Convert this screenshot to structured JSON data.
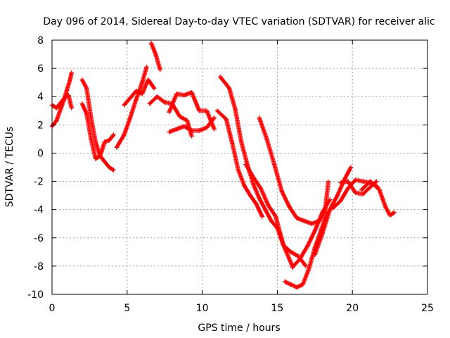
{
  "chart_data": {
    "type": "scatter",
    "title": "Day 096 of 2014, Sidereal Day-to-day VTEC variation (SDTVAR) for receiver alic",
    "xlabel": "GPS time / hours",
    "ylabel": "SDTVAR / TECUs",
    "xlim": [
      0,
      25
    ],
    "ylim": [
      -10,
      8
    ],
    "xticks": [
      0,
      5,
      10,
      15,
      20,
      25
    ],
    "yticks": [
      -10,
      -8,
      -6,
      -4,
      -2,
      0,
      2,
      4,
      6,
      8
    ],
    "xtick_labels": [
      "0",
      "5",
      "10",
      "15",
      "20",
      "25"
    ],
    "ytick_labels": [
      "-10",
      "-8",
      "-6",
      "-4",
      "-2",
      "0",
      "2",
      "4",
      "6",
      "8"
    ],
    "grid": true,
    "marker": "plus",
    "color": "#ff0000",
    "series": [
      {
        "x": [
          0.0,
          0.3,
          0.6,
          0.8,
          1.0,
          1.2,
          1.3
        ],
        "y": [
          1.9,
          2.3,
          3.2,
          3.8,
          4.5,
          5.2,
          5.7
        ]
      },
      {
        "x": [
          0.0,
          0.3,
          0.6,
          0.9,
          1.1,
          1.3
        ],
        "y": [
          3.4,
          3.2,
          3.6,
          4.0,
          4.1,
          3.2
        ]
      },
      {
        "x": [
          2.0,
          2.3,
          2.6,
          2.9,
          3.2,
          3.5,
          3.8,
          4.1
        ],
        "y": [
          5.2,
          4.6,
          2.5,
          0.8,
          -0.2,
          0.8,
          0.9,
          1.3
        ]
      },
      {
        "x": [
          2.0,
          2.3,
          2.6,
          2.9,
          3.2,
          3.5,
          3.8,
          4.1
        ],
        "y": [
          3.5,
          2.8,
          1.0,
          -0.4,
          -0.2,
          -0.6,
          -1.0,
          -1.2
        ]
      },
      {
        "x": [
          4.3,
          4.8,
          5.2,
          5.6,
          6.0,
          6.3
        ],
        "y": [
          0.4,
          1.3,
          2.5,
          3.8,
          5.0,
          6.1
        ]
      },
      {
        "x": [
          4.8,
          5.2,
          5.6,
          6.0,
          6.4,
          6.8
        ],
        "y": [
          3.4,
          3.9,
          4.4,
          4.2,
          5.2,
          4.6
        ]
      },
      {
        "x": [
          6.6,
          6.9,
          7.2
        ],
        "y": [
          7.8,
          7.0,
          5.9
        ]
      },
      {
        "x": [
          6.5,
          7.0,
          7.5,
          8.0,
          8.5,
          9.0,
          9.3
        ],
        "y": [
          3.5,
          4.0,
          3.6,
          3.5,
          2.6,
          2.3,
          1.2
        ]
      },
      {
        "x": [
          7.8,
          8.3,
          8.8,
          9.3,
          9.8,
          10.3,
          10.8
        ],
        "y": [
          2.9,
          4.2,
          4.1,
          4.3,
          3.0,
          3.0,
          1.7
        ]
      },
      {
        "x": [
          7.8,
          8.3,
          8.8,
          9.3,
          9.8,
          10.3,
          10.8
        ],
        "y": [
          1.5,
          1.7,
          1.9,
          1.6,
          1.6,
          1.8,
          2.5
        ]
      },
      {
        "x": [
          11.0,
          11.6,
          12.0,
          12.4,
          12.8,
          13.2,
          13.6,
          14.0
        ],
        "y": [
          3.0,
          2.4,
          0.7,
          -1.2,
          -2.3,
          -3.0,
          -3.6,
          -4.5
        ]
      },
      {
        "x": [
          11.2,
          11.8,
          12.2,
          12.6,
          13.0,
          13.4,
          13.8,
          14.2,
          14.6,
          15.0,
          15.4,
          15.8,
          16.0
        ],
        "y": [
          5.4,
          4.6,
          3.1,
          0.8,
          -0.8,
          -2.2,
          -3.2,
          -4.0,
          -4.8,
          -5.3,
          -6.5,
          -7.5,
          -8.0
        ]
      },
      {
        "x": [
          12.9,
          13.4,
          13.9,
          14.4,
          14.9,
          15.4,
          15.9,
          16.4,
          16.9
        ],
        "y": [
          -0.8,
          -1.7,
          -2.5,
          -3.7,
          -4.5,
          -6.5,
          -7.0,
          -7.3,
          -8.0
        ]
      },
      {
        "x": [
          13.8,
          14.3,
          14.8,
          15.3,
          15.8,
          16.3,
          16.8,
          17.3,
          17.8,
          18.2,
          18.4
        ],
        "y": [
          2.5,
          1.0,
          -0.8,
          -2.7,
          -3.8,
          -4.6,
          -4.8,
          -5.0,
          -4.8,
          -3.9,
          -2.0
        ]
      },
      {
        "x": [
          15.5,
          15.9,
          16.3,
          16.7,
          17.1,
          17.5,
          17.9,
          18.3
        ],
        "y": [
          -9.1,
          -9.3,
          -9.5,
          -9.3,
          -8.2,
          -6.7,
          -5.5,
          -4.2
        ]
      },
      {
        "x": [
          16.0,
          16.5,
          17.0,
          17.5,
          18.0,
          18.5
        ],
        "y": [
          -8.1,
          -7.5,
          -6.6,
          -5.5,
          -4.2,
          -3.3
        ]
      },
      {
        "x": [
          17.5,
          18.0,
          18.5,
          19.0,
          19.5,
          19.9
        ],
        "y": [
          -7.2,
          -5.7,
          -4.0,
          -3.0,
          -1.8,
          -1.0
        ]
      },
      {
        "x": [
          18.7,
          19.2,
          19.7,
          20.2,
          20.7,
          21.2,
          21.7
        ],
        "y": [
          -3.9,
          -3.4,
          -2.5,
          -1.9,
          -2.0,
          -2.1,
          -2.4
        ]
      },
      {
        "x": [
          19.2,
          19.7,
          20.2,
          20.7,
          21.2,
          21.6
        ],
        "y": [
          -2.1,
          -2.0,
          -2.8,
          -2.9,
          -2.4,
          -2.0
        ]
      },
      {
        "x": [
          20.6,
          21.2,
          21.8,
          22.2,
          22.5,
          22.8
        ],
        "y": [
          -2.6,
          -2.0,
          -2.6,
          -3.8,
          -4.4,
          -4.2
        ]
      }
    ]
  }
}
